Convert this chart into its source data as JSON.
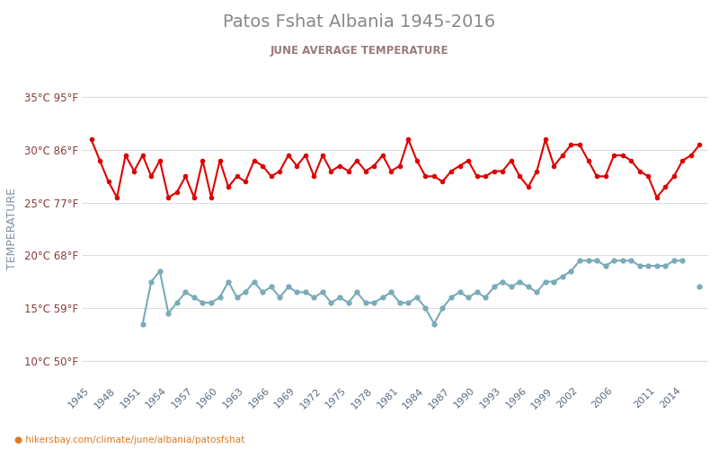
{
  "title": "Patos Fshat Albania 1945-2016",
  "subtitle": "JUNE AVERAGE TEMPERATURE",
  "ylabel": "TEMPERATURE",
  "xlabel_url": "hikersbay.com/climate/june/albania/patosfshat",
  "years": [
    1945,
    1946,
    1947,
    1948,
    1949,
    1950,
    1951,
    1952,
    1953,
    1954,
    1955,
    1956,
    1957,
    1958,
    1959,
    1960,
    1961,
    1962,
    1963,
    1964,
    1965,
    1966,
    1967,
    1968,
    1969,
    1970,
    1971,
    1972,
    1973,
    1974,
    1975,
    1976,
    1977,
    1978,
    1979,
    1980,
    1981,
    1982,
    1983,
    1984,
    1985,
    1986,
    1987,
    1988,
    1989,
    1990,
    1991,
    1992,
    1993,
    1994,
    1995,
    1996,
    1997,
    1998,
    1999,
    2000,
    2001,
    2002,
    2003,
    2004,
    2005,
    2006,
    2007,
    2008,
    2009,
    2010,
    2011,
    2012,
    2013,
    2014,
    2015,
    2016
  ],
  "day_temps": [
    31.0,
    29.0,
    27.0,
    25.5,
    29.5,
    28.0,
    29.5,
    27.5,
    29.0,
    25.5,
    26.0,
    27.5,
    25.5,
    29.0,
    25.5,
    29.0,
    26.5,
    27.5,
    27.0,
    29.0,
    28.5,
    27.5,
    28.0,
    29.5,
    28.5,
    29.5,
    27.5,
    29.5,
    28.0,
    28.5,
    28.0,
    29.0,
    28.0,
    28.5,
    29.5,
    28.0,
    28.5,
    31.0,
    29.0,
    27.5,
    27.5,
    27.0,
    28.0,
    28.5,
    29.0,
    27.5,
    27.5,
    28.0,
    28.0,
    29.0,
    27.5,
    26.5,
    28.0,
    31.0,
    28.5,
    29.5,
    30.5,
    30.5,
    29.0,
    27.5,
    27.5,
    29.5,
    29.5,
    29.0,
    28.0,
    27.5,
    25.5,
    26.5,
    27.5,
    29.0,
    29.5,
    30.5
  ],
  "night_temps": [
    null,
    null,
    null,
    null,
    null,
    null,
    13.5,
    17.5,
    18.5,
    14.5,
    15.5,
    16.5,
    16.0,
    15.5,
    15.5,
    16.0,
    17.5,
    16.0,
    16.5,
    17.5,
    16.5,
    17.0,
    16.0,
    17.0,
    16.5,
    16.5,
    16.0,
    16.5,
    15.5,
    16.0,
    15.5,
    16.5,
    15.5,
    15.5,
    16.0,
    16.5,
    15.5,
    15.5,
    16.0,
    15.0,
    13.5,
    15.0,
    16.0,
    16.5,
    16.0,
    16.5,
    16.0,
    17.0,
    17.5,
    17.0,
    17.5,
    17.0,
    16.5,
    17.5,
    17.5,
    18.0,
    18.5,
    19.5,
    19.5,
    19.5,
    19.0,
    19.5,
    19.5,
    19.5,
    19.0,
    19.0,
    19.0,
    19.0,
    19.5,
    19.5,
    null,
    17.0
  ],
  "day_color": "#dd0000",
  "night_color": "#7aabb8",
  "title_color": "#888888",
  "subtitle_color": "#9b7a7a",
  "tick_label_color": "#8b3a3a",
  "ytick_labels_c": [
    "10°C 50°F",
    "15°C 59°F",
    "20°C 68°F",
    "25°C 77°F",
    "30°C 86°F",
    "35°C 95°F"
  ],
  "ytick_vals": [
    10,
    15,
    20,
    25,
    30,
    35
  ],
  "xtick_years": [
    1945,
    1948,
    1951,
    1954,
    1957,
    1960,
    1963,
    1966,
    1969,
    1972,
    1975,
    1978,
    1981,
    1984,
    1987,
    1990,
    1993,
    1996,
    1999,
    2002,
    2006,
    2011,
    2014
  ],
  "ylim": [
    8,
    37
  ],
  "xlim": [
    1944,
    2017
  ],
  "background_color": "#ffffff",
  "grid_color": "#dddddd",
  "url_color": "#e07820",
  "ylabel_color": "#8090a0"
}
